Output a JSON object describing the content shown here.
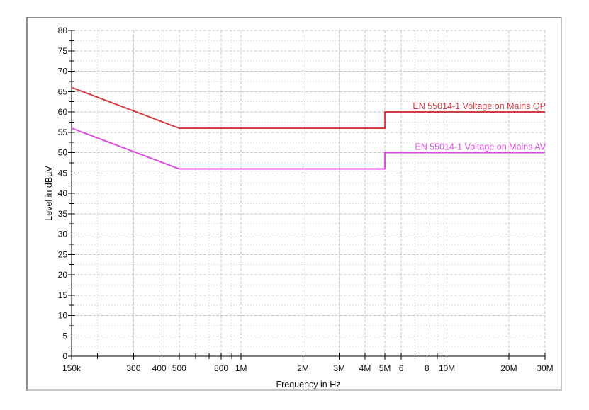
{
  "frame": {
    "border_color": "#8f8f8f"
  },
  "chart_data": {
    "type": "line",
    "title": "",
    "xlabel": "Frequency in Hz",
    "ylabel": "Level in dBµV",
    "x_scale": "log",
    "xlim_hz": [
      150000,
      30000000
    ],
    "ylim": [
      0,
      80
    ],
    "y_major_step": 5,
    "y_minor_step": 2.5,
    "grid": true,
    "legend_position": "inline-right-above-line",
    "x_major_ticks": [
      {
        "hz": 150000,
        "label": "150k"
      },
      {
        "hz": 300000,
        "label": "300"
      },
      {
        "hz": 400000,
        "label": "400"
      },
      {
        "hz": 500000,
        "label": "500"
      },
      {
        "hz": 800000,
        "label": "800"
      },
      {
        "hz": 1000000,
        "label": "1M"
      },
      {
        "hz": 2000000,
        "label": "2M"
      },
      {
        "hz": 3000000,
        "label": "3M"
      },
      {
        "hz": 4000000,
        "label": "4M"
      },
      {
        "hz": 5000000,
        "label": "5M"
      },
      {
        "hz": 6000000,
        "label": "6"
      },
      {
        "hz": 8000000,
        "label": "8"
      },
      {
        "hz": 10000000,
        "label": "10M"
      },
      {
        "hz": 20000000,
        "label": "20M"
      },
      {
        "hz": 30000000,
        "label": "30M"
      }
    ],
    "x_minor_ticks_hz": [
      200000,
      300000,
      400000,
      500000,
      600000,
      700000,
      800000,
      900000,
      1000000,
      2000000,
      3000000,
      4000000,
      5000000,
      6000000,
      7000000,
      8000000,
      9000000,
      10000000,
      20000000,
      30000000
    ],
    "y_tick_labels": [
      {
        "value": 0,
        "label": "0"
      },
      {
        "value": 5,
        "label": "5"
      },
      {
        "value": 10,
        "label": "10"
      },
      {
        "value": 15,
        "label": "15"
      },
      {
        "value": 20,
        "label": "20"
      },
      {
        "value": 25,
        "label": "25"
      },
      {
        "value": 30,
        "label": "30"
      },
      {
        "value": 35,
        "label": "35"
      },
      {
        "value": 40,
        "label": "40"
      },
      {
        "value": 45,
        "label": "45"
      },
      {
        "value": 50,
        "label": "50"
      },
      {
        "value": 55,
        "label": "55"
      },
      {
        "value": 60,
        "label": "60"
      },
      {
        "value": 65,
        "label": "65"
      },
      {
        "value": 70,
        "label": "70"
      },
      {
        "value": 75,
        "label": "75"
      },
      {
        "value": 80,
        "label": "80"
      }
    ],
    "series": [
      {
        "name": "EN 55014-1 Voltage on Mains QP",
        "color": "#d23b40",
        "points_hz_db": [
          [
            150000,
            66
          ],
          [
            500000,
            56
          ],
          [
            5000000,
            56
          ],
          [
            5000000,
            60
          ],
          [
            30000000,
            60
          ]
        ]
      },
      {
        "name": "EN 55014-1 Voltage on Mains AV",
        "color": "#dc4ae0",
        "points_hz_db": [
          [
            150000,
            56
          ],
          [
            500000,
            46
          ],
          [
            5000000,
            46
          ],
          [
            5000000,
            50
          ],
          [
            30000000,
            50
          ]
        ]
      }
    ],
    "grid_colors": {
      "major": "#c8c8c8",
      "minor": "#dedede"
    }
  }
}
